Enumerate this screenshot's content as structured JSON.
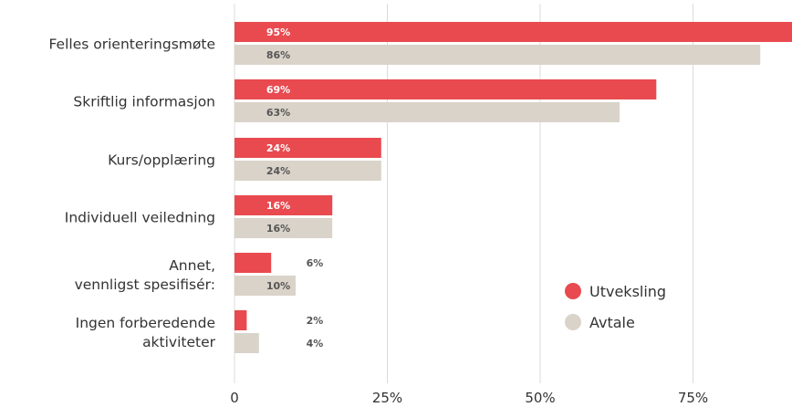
{
  "chart_data": {
    "type": "bar",
    "orientation": "horizontal",
    "categories": [
      [
        "Felles orienteringsmøte"
      ],
      [
        "Skriftlig informasjon"
      ],
      [
        "Kurs/opplæring"
      ],
      [
        "Individuell veiledning"
      ],
      [
        "Annet,",
        "vennligst spesifisér:"
      ],
      [
        "Ingen forberedende",
        "aktiviteter"
      ]
    ],
    "series": [
      {
        "name": "Utveksling",
        "color": "#e84a4f",
        "values": [
          95,
          69,
          24,
          16,
          6,
          2
        ]
      },
      {
        "name": "Avtale",
        "color": "#d9d3c9",
        "values": [
          86,
          63,
          24,
          16,
          10,
          4
        ]
      }
    ],
    "value_suffix": "%",
    "xlim": [
      0,
      100
    ],
    "x_ticks": [
      {
        "value": 0,
        "label": "0"
      },
      {
        "value": 25,
        "label": "25%"
      },
      {
        "value": 50,
        "label": "50%"
      },
      {
        "value": 75,
        "label": "75%"
      }
    ],
    "grid": true,
    "legend_position": "lower-right"
  }
}
